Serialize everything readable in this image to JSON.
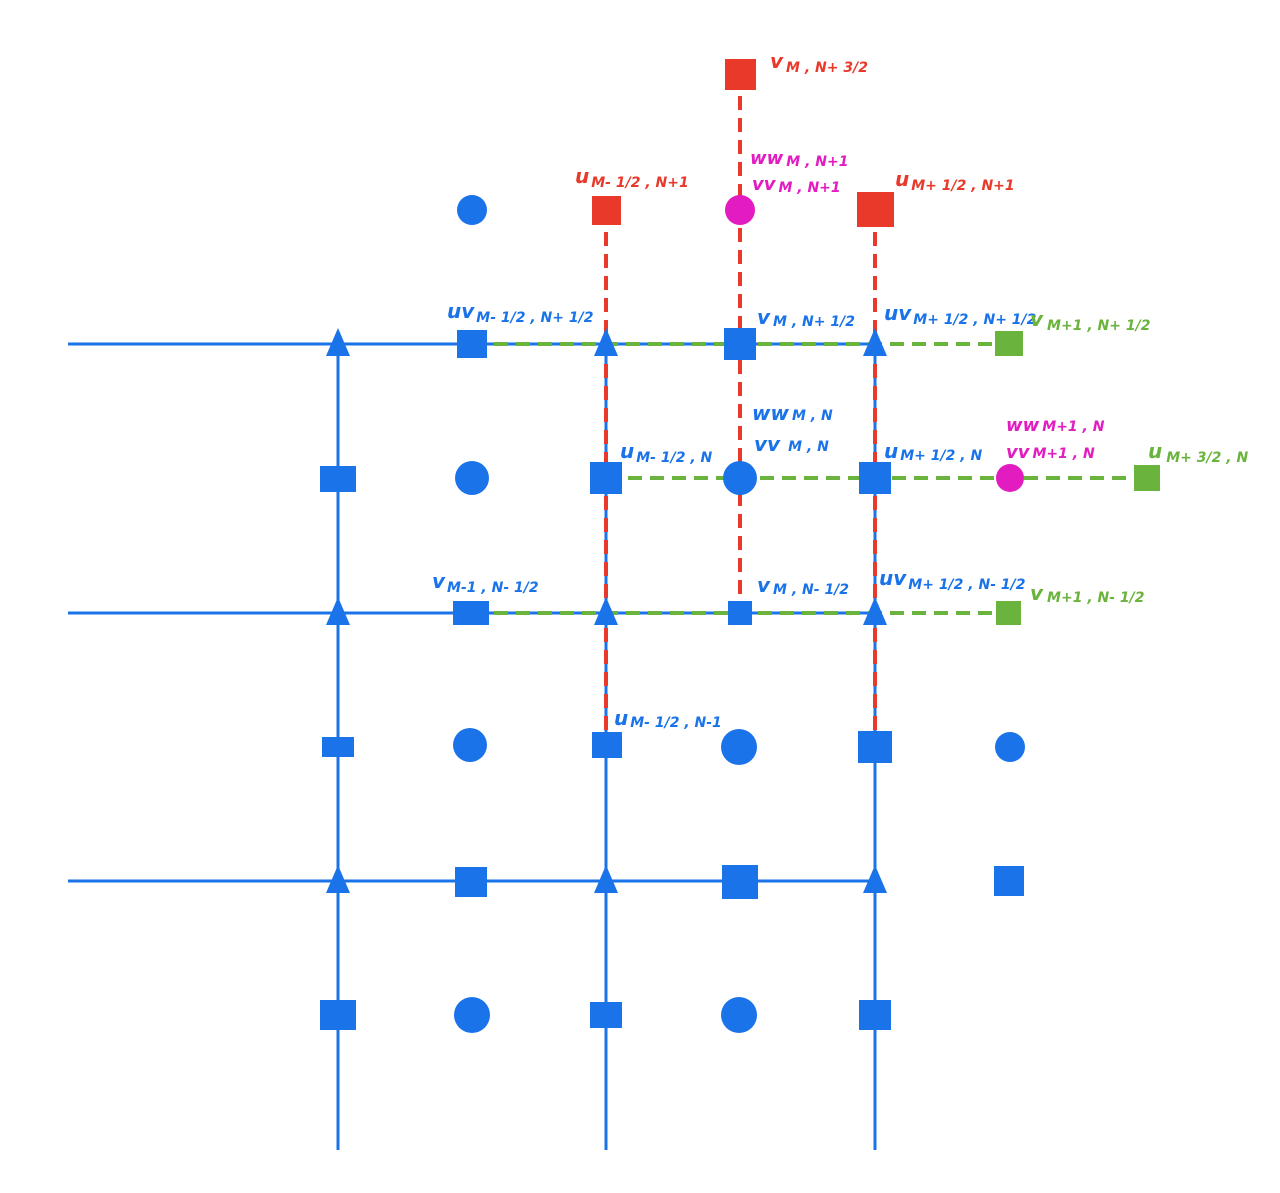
{
  "colors": {
    "blue": "#1a73e8",
    "red": "#e8392a",
    "green": "#6ab33c",
    "magenta": "#e21cc0"
  },
  "labels": {
    "v_m_n32": {
      "main": "v",
      "sub": "M , N+ 3/2"
    },
    "ww_m_n1": {
      "main": "ww",
      "sub": "M , N+1"
    },
    "vv_m_n1": {
      "main": "vv",
      "sub": "M , N+1"
    },
    "u_mm_n1": {
      "main": "u",
      "sub": "M- 1/2 , N+1"
    },
    "u_mp_n1": {
      "main": "u",
      "sub": "M+ 1/2 , N+1"
    },
    "uv_mm_nh": {
      "main": "uv",
      "sub": "M- 1/2 , N+ 1/2"
    },
    "v_m_nh": {
      "main": "v",
      "sub": "M , N+ 1/2"
    },
    "uv_mp_nh": {
      "main": "uv",
      "sub": "M+ 1/2 , N+ 1/2"
    },
    "v_m1_nh": {
      "main": "v",
      "sub": "M+1 , N+ 1/2"
    },
    "ww_m_n": {
      "main": "ww",
      "sub": "M , N"
    },
    "vv_m_n": {
      "main": "vv",
      "sub": "M , N"
    },
    "u_mm_n": {
      "main": "u",
      "sub": "M- 1/2 , N"
    },
    "u_mp_n": {
      "main": "u",
      "sub": "M+ 1/2 , N"
    },
    "ww_m1_n": {
      "main": "ww",
      "sub": "M+1 , N"
    },
    "vv_m1_n": {
      "main": "vv",
      "sub": "M+1 , N"
    },
    "u_m32_n": {
      "main": "u",
      "sub": "M+ 3/2 , N"
    },
    "v_mm1_nmh": {
      "main": "v",
      "sub": "M-1 , N- 1/2"
    },
    "v_m_nmh": {
      "main": "v",
      "sub": "M , N- 1/2"
    },
    "uv_mp_nmh": {
      "main": "uv",
      "sub": "M+ 1/2 , N- 1/2"
    },
    "v_m1_nmh": {
      "main": "v",
      "sub": "M+1 , N- 1/2"
    },
    "u_mm_nm1": {
      "main": "u",
      "sub": "M- 1/2 , N-1"
    }
  }
}
